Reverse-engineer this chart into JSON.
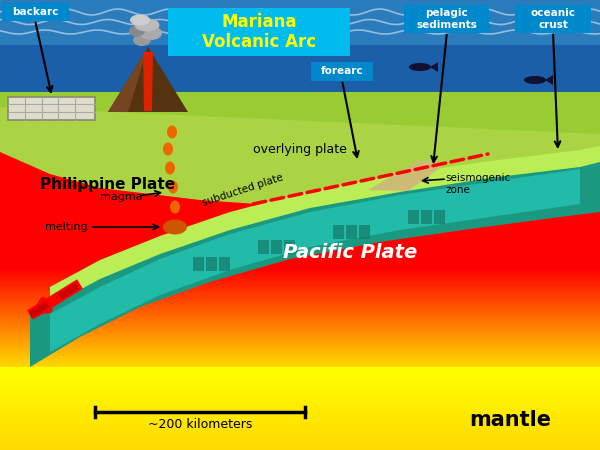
{
  "fig_width": 6.0,
  "fig_height": 4.5,
  "dpi": 100,
  "bg_color": "#111111",
  "title_line1": "Mariana",
  "title_line2": "Volcanic Arc",
  "ocean_dark": "#1a5fa8",
  "ocean_mid": "#2277bb",
  "ocean_light": "#44aadd",
  "phil_green": "#99cc33",
  "overl_green": "#aad444",
  "pac_teal": "#1a9980",
  "pac_light": "#22bbaa",
  "sub_lime": "#bbee55",
  "label_box_color": "#0099cc",
  "volcano_dark": "#442211",
  "volcano_lava": "#dd2200",
  "magma_color": "#ee6600",
  "labels": {
    "backarc": "backarc",
    "forearc": "forearc",
    "pelagic": "pelagic\nsediments",
    "oceanic": "oceanic\ncrust",
    "overlying": "overlying plate",
    "philippine": "Philippine Plate",
    "pacific": "Pacific Plate",
    "subducted": "subducted plate",
    "seismogenic": "seismogenic\nzone",
    "magma": "magma",
    "melting": "melting",
    "mantle": "mantle",
    "scale": "~200 kilometers"
  }
}
